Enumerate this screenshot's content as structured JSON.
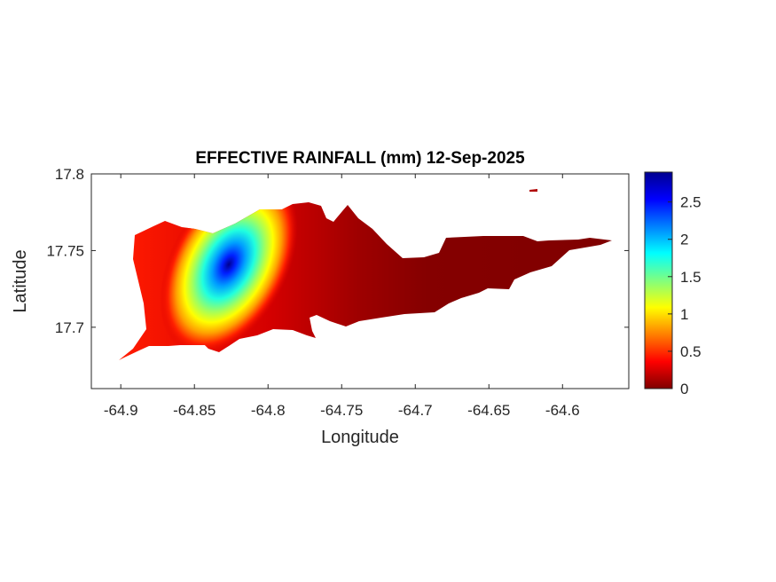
{
  "title": "EFFECTIVE RAINFALL (mm) 12-Sep-2025",
  "chart_data": {
    "type": "heatmap",
    "title": "EFFECTIVE RAINFALL (mm) 12-Sep-2025",
    "xlabel": "Longitude",
    "ylabel": "Latitude",
    "xlim": [
      -64.92,
      -64.555
    ],
    "ylim": [
      17.66,
      17.8
    ],
    "x_ticks": [
      "-64.9",
      "-64.85",
      "-64.8",
      "-64.75",
      "-64.7",
      "-64.65",
      "-64.6"
    ],
    "x_tick_values": [
      -64.9,
      -64.85,
      -64.8,
      -64.75,
      -64.7,
      -64.65,
      -64.6
    ],
    "y_ticks": [
      "17.7",
      "17.75",
      "17.8"
    ],
    "y_tick_values": [
      17.7,
      17.75,
      17.8
    ],
    "colorbar": {
      "colormap": "jet",
      "limits": [
        0,
        2.9
      ],
      "ticks": [
        "0",
        "0.5",
        "1",
        "1.5",
        "2",
        "2.5"
      ],
      "tick_values": [
        0,
        0.5,
        1,
        1.5,
        2,
        2.5
      ]
    },
    "peak": {
      "lon": -64.828,
      "lat": 17.736,
      "value": 2.9
    },
    "grid": false
  }
}
